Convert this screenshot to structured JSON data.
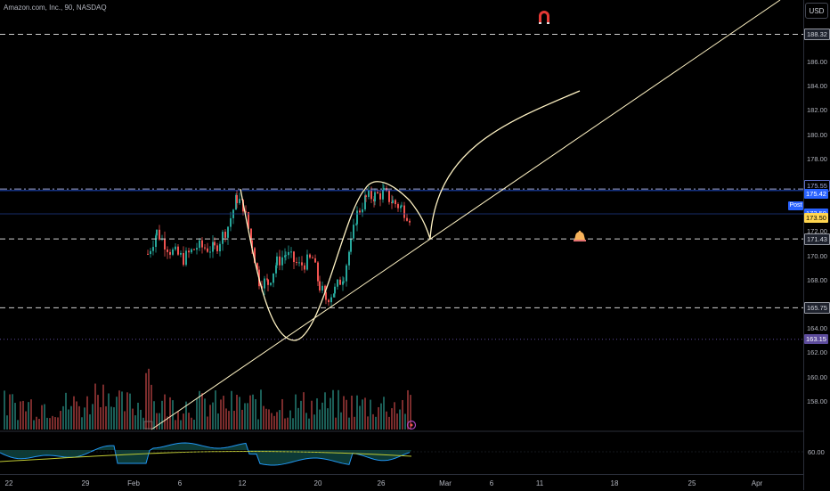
{
  "header": {
    "title": "Amazon.com, Inc., 90, NASDAQ",
    "currency_button": "USD"
  },
  "colors": {
    "background": "#000000",
    "up_candle": "#26a69a",
    "down_candle": "#ef5350",
    "drawing": "#fff3c4",
    "blue_line": "#2962ff",
    "oscillator": "#2196f3",
    "oscillator_ma": "#c0ca33",
    "last_price_bg": "#ffd54f"
  },
  "icons": {
    "magnet": "magnet-icon",
    "alert": "bell-icon",
    "volume": "globe-icon"
  },
  "price_axis": {
    "ticks": [
      "186.00",
      "184.00",
      "182.00",
      "180.00",
      "178.00",
      "172.00",
      "170.00",
      "168.00",
      "164.00",
      "162.00",
      "160.00",
      "158.00"
    ],
    "tick_values": [
      186,
      184,
      182,
      180,
      178,
      172,
      170,
      168,
      164,
      162,
      160,
      158
    ],
    "levels": [
      {
        "label": "188.32",
        "value": 188.32,
        "style": "dashed"
      },
      {
        "label": "175.55",
        "value": 175.55,
        "style": "dashdot"
      },
      {
        "label": "175.42",
        "value": 175.42,
        "style": "blue"
      },
      {
        "label": "173.50",
        "value": 173.5,
        "style": "post"
      },
      {
        "label": "171.43",
        "value": 171.43,
        "style": "dashed"
      },
      {
        "label": "165.75",
        "value": 165.75,
        "style": "dashed"
      },
      {
        "label": "163.15",
        "value": 163.15,
        "style": "purple"
      }
    ],
    "post_label": "Post",
    "last_price": "173.50"
  },
  "time_axis": {
    "labels": [
      "22",
      "29",
      "Feb",
      "6",
      "12",
      "20",
      "26",
      "Mar",
      "6",
      "11",
      "18",
      "25",
      "Apr"
    ]
  },
  "oscillator": {
    "level_label": "60.00"
  }
}
